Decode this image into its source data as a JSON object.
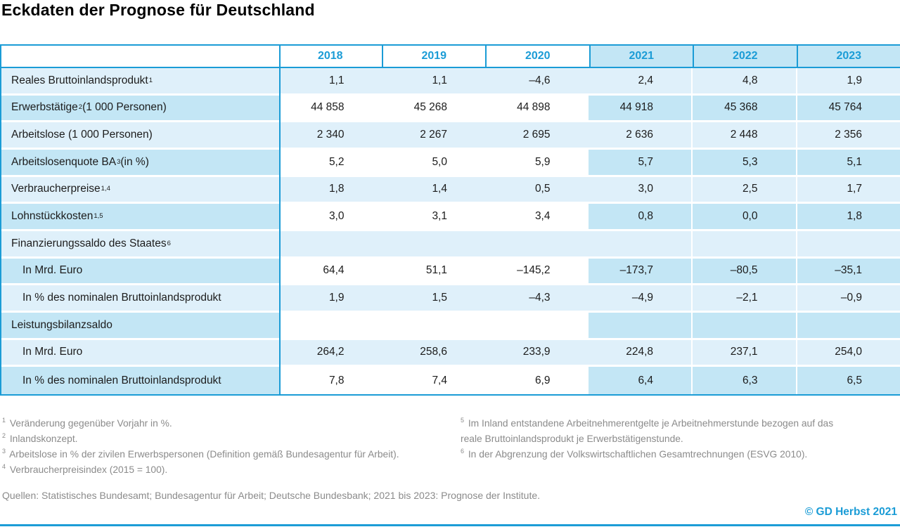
{
  "title": "Eckdaten der Prognose für Deutschland",
  "colors": {
    "accent": "#1b9cd6",
    "band_light": "#dff0fa",
    "band_dark": "#c3e6f5",
    "footnote_gray": "#8b8b8b"
  },
  "table": {
    "years": [
      "2018",
      "2019",
      "2020",
      "2021",
      "2022",
      "2023"
    ],
    "forecast_from_index": 3,
    "rows": [
      {
        "label_pre": "Reales Bruttoinlandsprodukt",
        "label_sup": "1",
        "label_post": "",
        "indent": false,
        "values": [
          "1,1",
          "1,1",
          "–4,6",
          "2,4",
          "4,8",
          "1,9"
        ]
      },
      {
        "label_pre": "Erwerbstätige",
        "label_sup": "2",
        "label_post": " (1 000 Personen)",
        "indent": false,
        "values": [
          "44 858",
          "45 268",
          "44 898",
          "44 918",
          "45 368",
          "45 764"
        ]
      },
      {
        "label_pre": "Arbeitslose (1 000 Personen)",
        "label_sup": "",
        "label_post": "",
        "indent": false,
        "values": [
          "2 340",
          "2 267",
          "2 695",
          "2 636",
          "2 448",
          "2 356"
        ]
      },
      {
        "label_pre": "Arbeitslosenquote BA",
        "label_sup": "3",
        "label_post": " (in %)",
        "indent": false,
        "values": [
          "5,2",
          "5,0",
          "5,9",
          "5,7",
          "5,3",
          "5,1"
        ]
      },
      {
        "label_pre": "Verbraucherpreise",
        "label_sup": "1,4",
        "label_post": "",
        "indent": false,
        "values": [
          "1,8",
          "1,4",
          "0,5",
          "3,0",
          "2,5",
          "1,7"
        ]
      },
      {
        "label_pre": "Lohnstückkosten",
        "label_sup": "1,5",
        "label_post": "",
        "indent": false,
        "values": [
          "3,0",
          "3,1",
          "3,4",
          "0,8",
          "0,0",
          "1,8"
        ]
      },
      {
        "label_pre": "Finanzierungssaldo des Staates",
        "label_sup": "6",
        "label_post": "",
        "indent": false,
        "values": [
          "",
          "",
          "",
          "",
          "",
          ""
        ]
      },
      {
        "label_pre": "In Mrd. Euro",
        "label_sup": "",
        "label_post": "",
        "indent": true,
        "values": [
          "64,4",
          "51,1",
          "–145,2",
          "–173,7",
          "–80,5",
          "–35,1"
        ]
      },
      {
        "label_pre": "In % des nominalen Bruttoinlandsprodukt",
        "label_sup": "",
        "label_post": "",
        "indent": true,
        "values": [
          "1,9",
          "1,5",
          "–4,3",
          "–4,9",
          "–2,1",
          "–0,9"
        ]
      },
      {
        "label_pre": "Leistungsbilanzsaldo",
        "label_sup": "",
        "label_post": "",
        "indent": false,
        "values": [
          "",
          "",
          "",
          "",
          "",
          ""
        ]
      },
      {
        "label_pre": "In Mrd. Euro",
        "label_sup": "",
        "label_post": "",
        "indent": true,
        "values": [
          "264,2",
          "258,6",
          "233,9",
          "224,8",
          "237,1",
          "254,0"
        ]
      },
      {
        "label_pre": "In % des nominalen Bruttoinlandsprodukt",
        "label_sup": "",
        "label_post": "",
        "indent": true,
        "values": [
          "7,8",
          "7,4",
          "6,9",
          "6,4",
          "6,3",
          "6,5"
        ]
      }
    ]
  },
  "footnotes": {
    "left": [
      {
        "sup": "1",
        "text": "Veränderung gegenüber Vorjahr in %."
      },
      {
        "sup": "2",
        "text": "Inlandskonzept."
      },
      {
        "sup": "3",
        "text": "Arbeitslose in % der zivilen Erwerbspersonen (Definition gemäß Bundesagentur für Arbeit)."
      },
      {
        "sup": "4",
        "text": "Verbraucherpreisindex (2015 = 100)."
      }
    ],
    "right": [
      {
        "sup": "5",
        "text": "Im Inland entstandene Arbeitnehmerentgelte je Arbeitnehmerstunde bezogen auf das reale Bruttoinlandsprodukt je Erwerbstätigenstunde."
      },
      {
        "sup": "6",
        "text": "In der Abgrenzung der Volkswirtschaftlichen Gesamtrechnungen (ESVG 2010)."
      }
    ]
  },
  "sources": "Quellen: Statistisches Bundesamt; Bundesagentur für Arbeit; Deutsche Bundesbank; 2021 bis 2023: Prognose der Institute.",
  "credit": "© GD Herbst 2021",
  "chart_data": {
    "type": "table",
    "title": "Eckdaten der Prognose für Deutschland",
    "columns": [
      "2018",
      "2019",
      "2020",
      "2021",
      "2022",
      "2023"
    ],
    "forecast_columns": [
      "2021",
      "2022",
      "2023"
    ],
    "rows": [
      {
        "label": "Reales Bruttoinlandsprodukt (Veränderung gegenüber Vorjahr in %)",
        "values": [
          1.1,
          1.1,
          -4.6,
          2.4,
          4.8,
          1.9
        ]
      },
      {
        "label": "Erwerbstätige (1 000 Personen)",
        "values": [
          44858,
          45268,
          44898,
          44918,
          45368,
          45764
        ]
      },
      {
        "label": "Arbeitslose (1 000 Personen)",
        "values": [
          2340,
          2267,
          2695,
          2636,
          2448,
          2356
        ]
      },
      {
        "label": "Arbeitslosenquote BA (in %)",
        "values": [
          5.2,
          5.0,
          5.9,
          5.7,
          5.3,
          5.1
        ]
      },
      {
        "label": "Verbraucherpreise (Veränderung gegenüber Vorjahr in %)",
        "values": [
          1.8,
          1.4,
          0.5,
          3.0,
          2.5,
          1.7
        ]
      },
      {
        "label": "Lohnstückkosten (Veränderung gegenüber Vorjahr in %)",
        "values": [
          3.0,
          3.1,
          3.4,
          0.8,
          0.0,
          1.8
        ]
      },
      {
        "label": "Finanzierungssaldo des Staates",
        "values": [
          null,
          null,
          null,
          null,
          null,
          null
        ]
      },
      {
        "label": "Finanzierungssaldo des Staates – In Mrd. Euro",
        "values": [
          64.4,
          51.1,
          -145.2,
          -173.7,
          -80.5,
          -35.1
        ]
      },
      {
        "label": "Finanzierungssaldo des Staates – In % des nominalen Bruttoinlandsprodukt",
        "values": [
          1.9,
          1.5,
          -4.3,
          -4.9,
          -2.1,
          -0.9
        ]
      },
      {
        "label": "Leistungsbilanzsaldo",
        "values": [
          null,
          null,
          null,
          null,
          null,
          null
        ]
      },
      {
        "label": "Leistungsbilanzsaldo – In Mrd. Euro",
        "values": [
          264.2,
          258.6,
          233.9,
          224.8,
          237.1,
          254.0
        ]
      },
      {
        "label": "Leistungsbilanzsaldo – In % des nominalen Bruttoinlandsprodukt",
        "values": [
          7.8,
          7.4,
          6.9,
          6.4,
          6.3,
          6.5
        ]
      }
    ]
  }
}
